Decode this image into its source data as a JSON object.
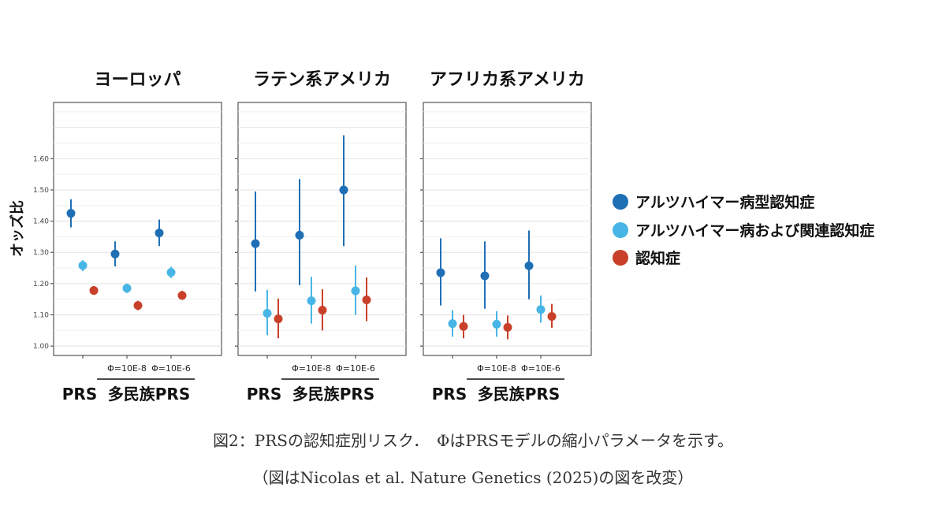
{
  "chart_data": {
    "type": "scatter",
    "subtype": "point-range (odds ratio with confidence interval), faceted",
    "ylabel": "オッズ比",
    "ylim": [
      0.97,
      1.78
    ],
    "yticks": [
      "1.00",
      "1.10",
      "1.20",
      "1.30",
      "1.40",
      "1.50",
      "1.60"
    ],
    "grid": true,
    "legend_position": "right",
    "series": [
      {
        "name": "アルツハイマー病型認知症",
        "color": "#1f6fb5"
      },
      {
        "name": "アルツハイマー病および関連認知症",
        "color": "#47b6e6"
      },
      {
        "name": "認知症",
        "color": "#c9402a"
      }
    ],
    "x_groups": [
      {
        "label": "PRS",
        "sublabel": ""
      },
      {
        "label": "多民族PRS",
        "sublabel": "Φ=10E-8"
      },
      {
        "label": "多民族PRS",
        "sublabel": "Φ=10E-6"
      }
    ],
    "bottom_labels": {
      "prs": "PRS",
      "multi": "多民族PRS",
      "phi8": "Φ=10E-8",
      "phi6": "Φ=10E-6"
    },
    "panels": [
      {
        "title": "ヨーロッパ",
        "points": [
          [
            {
              "y": 1.425,
              "lo": 1.38,
              "hi": 1.47
            },
            {
              "y": 1.258,
              "lo": 1.24,
              "hi": 1.275
            },
            {
              "y": 1.178,
              "lo": 1.165,
              "hi": 1.192
            }
          ],
          [
            {
              "y": 1.295,
              "lo": 1.255,
              "hi": 1.335
            },
            {
              "y": 1.185,
              "lo": 1.17,
              "hi": 1.2
            },
            {
              "y": 1.13,
              "lo": 1.115,
              "hi": 1.145
            }
          ],
          [
            {
              "y": 1.362,
              "lo": 1.32,
              "hi": 1.405
            },
            {
              "y": 1.236,
              "lo": 1.218,
              "hi": 1.254
            },
            {
              "y": 1.162,
              "lo": 1.148,
              "hi": 1.177
            }
          ]
        ]
      },
      {
        "title": "ラテン系アメリカ",
        "points": [
          [
            {
              "y": 1.328,
              "lo": 1.175,
              "hi": 1.495
            },
            {
              "y": 1.105,
              "lo": 1.035,
              "hi": 1.18
            },
            {
              "y": 1.087,
              "lo": 1.025,
              "hi": 1.152
            }
          ],
          [
            {
              "y": 1.355,
              "lo": 1.195,
              "hi": 1.535
            },
            {
              "y": 1.145,
              "lo": 1.072,
              "hi": 1.222
            },
            {
              "y": 1.115,
              "lo": 1.05,
              "hi": 1.182
            }
          ],
          [
            {
              "y": 1.5,
              "lo": 1.32,
              "hi": 1.675
            },
            {
              "y": 1.177,
              "lo": 1.1,
              "hi": 1.258
            },
            {
              "y": 1.148,
              "lo": 1.08,
              "hi": 1.22
            }
          ]
        ]
      },
      {
        "title": "アフリカ系アメリカ",
        "points": [
          [
            {
              "y": 1.235,
              "lo": 1.13,
              "hi": 1.345
            },
            {
              "y": 1.072,
              "lo": 1.03,
              "hi": 1.115
            },
            {
              "y": 1.063,
              "lo": 1.025,
              "hi": 1.1
            }
          ],
          [
            {
              "y": 1.225,
              "lo": 1.12,
              "hi": 1.335
            },
            {
              "y": 1.07,
              "lo": 1.03,
              "hi": 1.112
            },
            {
              "y": 1.06,
              "lo": 1.022,
              "hi": 1.098
            }
          ],
          [
            {
              "y": 1.257,
              "lo": 1.15,
              "hi": 1.37
            },
            {
              "y": 1.117,
              "lo": 1.075,
              "hi": 1.162
            },
            {
              "y": 1.095,
              "lo": 1.058,
              "hi": 1.135
            }
          ]
        ]
      }
    ]
  },
  "caption": {
    "line1": "図2：PRSの認知症別リスク．　ΦはPRSモデルの縮小パラメータを示す。",
    "line2": "（図はNicolas et al. Nature Genetics (2025)の図を改変）"
  }
}
